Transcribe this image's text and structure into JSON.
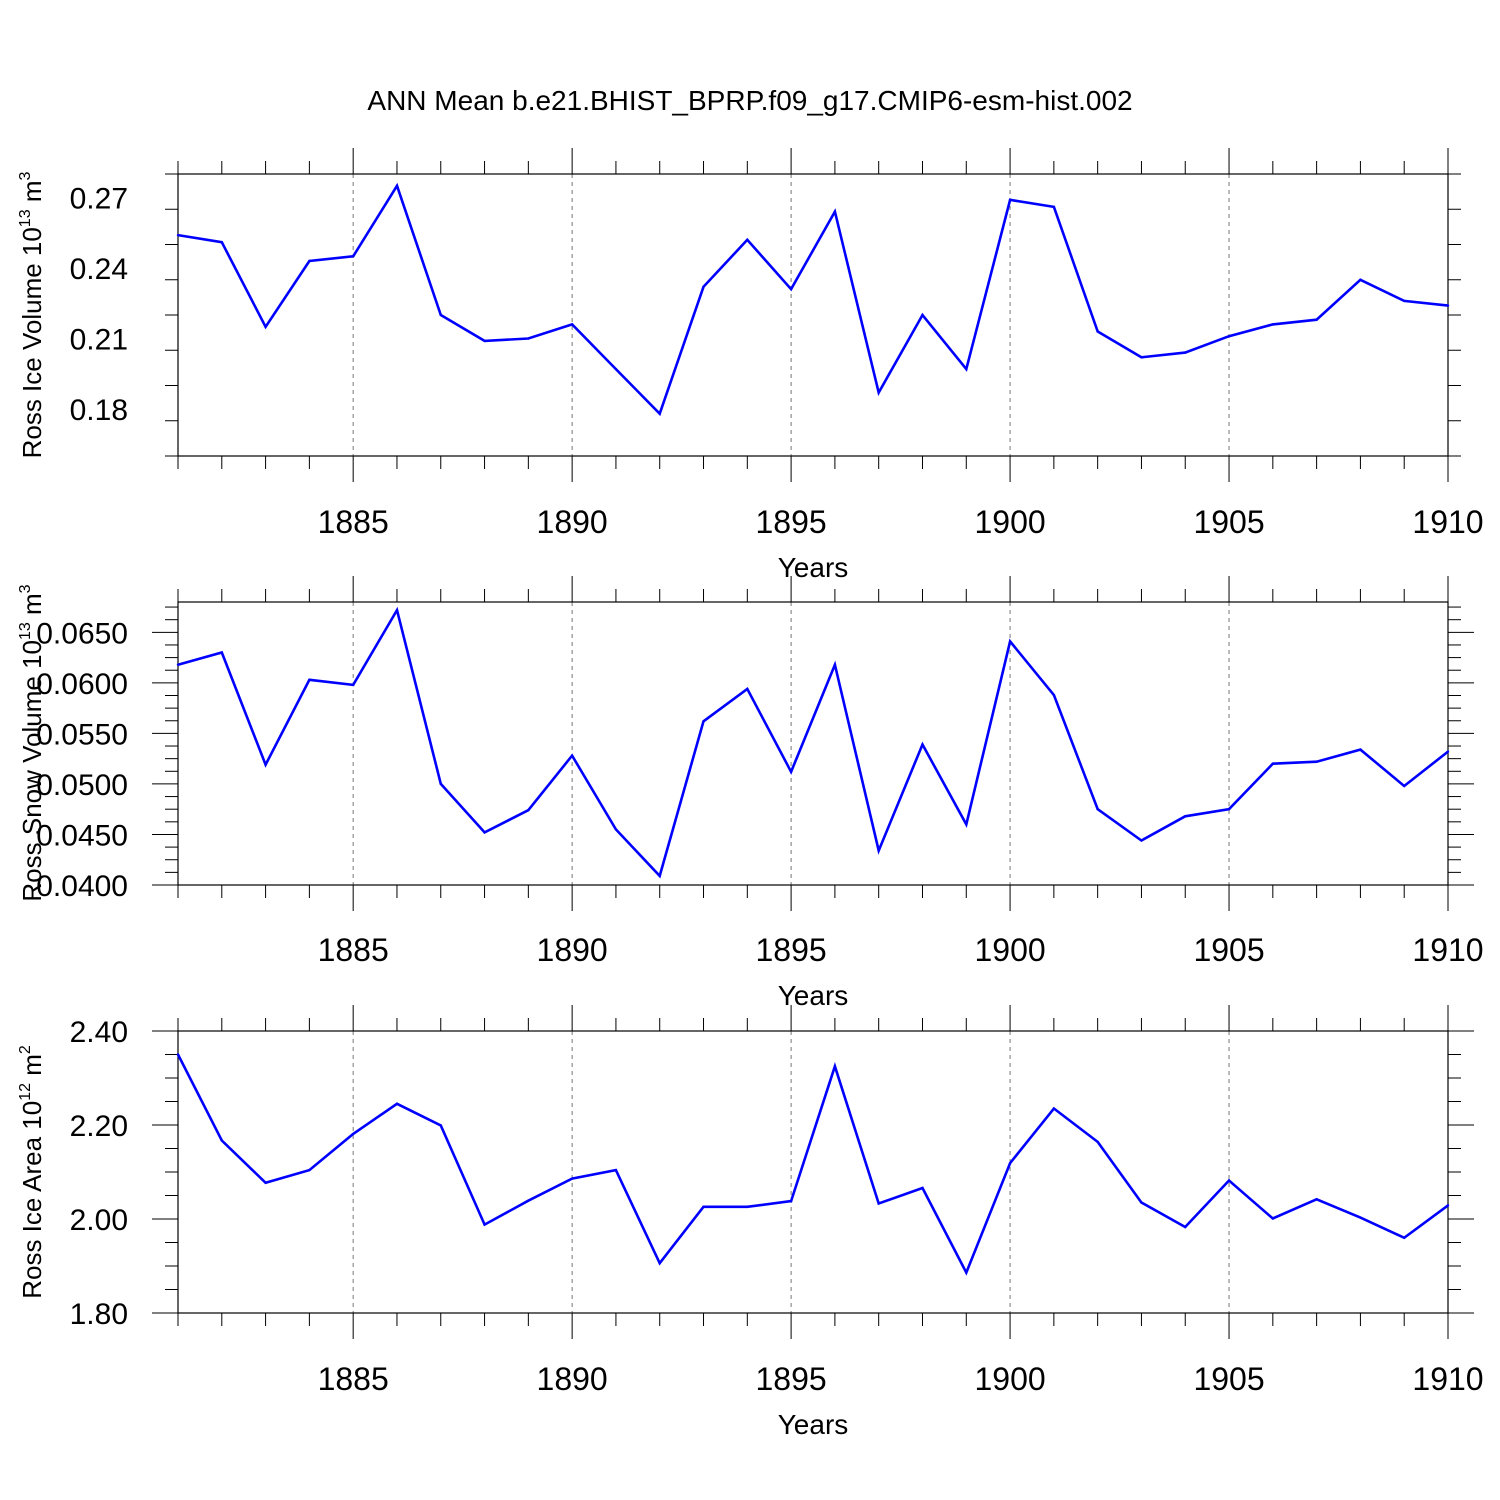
{
  "title": "ANN Mean b.e21.BHIST_BPRP.f09_g17.CMIP6-esm-hist.002",
  "colors": {
    "line": "#0000ff",
    "axis": "#000000",
    "grid": "#777777",
    "background": "#ffffff"
  },
  "chart_data": [
    {
      "type": "line",
      "ylabel": "Ross Ice Volume 10",
      "ylabel_exp": "13",
      "ylabel_unit": " m",
      "ylabel_unit_exp": "3",
      "xlabel": "Years",
      "xlim": [
        1881,
        1910
      ],
      "ylim": [
        0.16,
        0.28
      ],
      "yticks": [
        0.18,
        0.21,
        0.24,
        0.27
      ],
      "ytick_labels": [
        "0.18",
        "0.21",
        "0.24",
        "0.27"
      ],
      "xticks": [
        1885,
        1890,
        1895,
        1900,
        1905,
        1910
      ],
      "xtick_labels": [
        "1885",
        "1890",
        "1895",
        "1900",
        "1905",
        "1910"
      ],
      "grid_x": true,
      "x": [
        1881,
        1882,
        1883,
        1884,
        1885,
        1886,
        1887,
        1888,
        1889,
        1890,
        1891,
        1892,
        1893,
        1894,
        1895,
        1896,
        1897,
        1898,
        1899,
        1900,
        1901,
        1902,
        1903,
        1904,
        1905,
        1906,
        1907,
        1908,
        1909,
        1910
      ],
      "values": [
        0.254,
        0.251,
        0.215,
        0.243,
        0.245,
        0.275,
        0.22,
        0.209,
        0.21,
        0.216,
        0.197,
        0.178,
        0.232,
        0.252,
        0.231,
        0.264,
        0.187,
        0.22,
        0.197,
        0.269,
        0.266,
        0.213,
        0.202,
        0.204,
        0.211,
        0.216,
        0.218,
        0.235,
        0.226,
        0.224
      ]
    },
    {
      "type": "line",
      "ylabel": "Ross Snow Volume 10",
      "ylabel_exp": "13",
      "ylabel_unit": " m",
      "ylabel_unit_exp": "3",
      "xlabel": "Years",
      "xlim": [
        1881,
        1910
      ],
      "ylim": [
        0.04,
        0.068
      ],
      "yticks": [
        0.04,
        0.045,
        0.05,
        0.055,
        0.06,
        0.065
      ],
      "ytick_labels": [
        "0.0400",
        "0.0450",
        "0.0500",
        "0.0550",
        "0.0600",
        "0.0650"
      ],
      "xticks": [
        1885,
        1890,
        1895,
        1900,
        1905,
        1910
      ],
      "xtick_labels": [
        "1885",
        "1890",
        "1895",
        "1900",
        "1905",
        "1910"
      ],
      "grid_x": true,
      "x": [
        1881,
        1882,
        1883,
        1884,
        1885,
        1886,
        1887,
        1888,
        1889,
        1890,
        1891,
        1892,
        1893,
        1894,
        1895,
        1896,
        1897,
        1898,
        1899,
        1900,
        1901,
        1902,
        1903,
        1904,
        1905,
        1906,
        1907,
        1908,
        1909,
        1910
      ],
      "values": [
        0.0618,
        0.063,
        0.0519,
        0.0603,
        0.0598,
        0.0672,
        0.05,
        0.0452,
        0.0474,
        0.0528,
        0.0455,
        0.0409,
        0.0562,
        0.0594,
        0.0512,
        0.0618,
        0.0434,
        0.0539,
        0.046,
        0.0641,
        0.0588,
        0.0475,
        0.0444,
        0.0468,
        0.0475,
        0.052,
        0.0522,
        0.0534,
        0.0498,
        0.0532
      ]
    },
    {
      "type": "line",
      "ylabel": "Ross Ice Area 10",
      "ylabel_exp": "12",
      "ylabel_unit": " m",
      "ylabel_unit_exp": "2",
      "xlabel": "Years",
      "xlim": [
        1881,
        1910
      ],
      "ylim": [
        1.8,
        2.4
      ],
      "yticks": [
        1.8,
        2.0,
        2.2,
        2.4
      ],
      "ytick_labels": [
        "1.80",
        "2.00",
        "2.20",
        "2.40"
      ],
      "xticks": [
        1885,
        1890,
        1895,
        1900,
        1905,
        1910
      ],
      "xtick_labels": [
        "1885",
        "1890",
        "1895",
        "1900",
        "1905",
        "1910"
      ],
      "grid_x": true,
      "x": [
        1881,
        1882,
        1883,
        1884,
        1885,
        1886,
        1887,
        1888,
        1889,
        1890,
        1891,
        1892,
        1893,
        1894,
        1895,
        1896,
        1897,
        1898,
        1899,
        1900,
        1901,
        1902,
        1903,
        1904,
        1905,
        1906,
        1907,
        1908,
        1909,
        1910
      ],
      "values": [
        2.35,
        2.167,
        2.077,
        2.104,
        2.181,
        2.245,
        2.199,
        1.988,
        2.039,
        2.086,
        2.104,
        1.906,
        2.026,
        2.026,
        2.038,
        2.325,
        2.033,
        2.066,
        1.886,
        2.119,
        2.235,
        2.164,
        2.035,
        1.983,
        2.082,
        2.001,
        2.042,
        2.003,
        1.96,
        2.029
      ]
    }
  ]
}
